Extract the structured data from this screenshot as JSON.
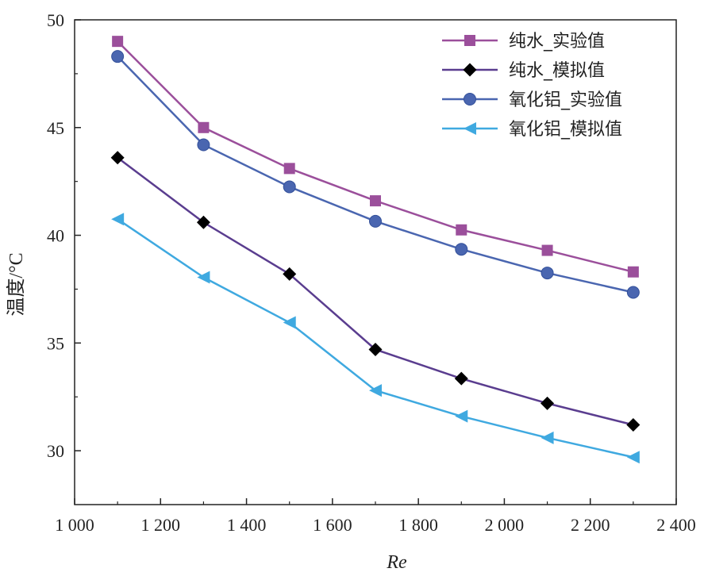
{
  "chart_data": {
    "type": "line",
    "title": "",
    "xlabel": "Re",
    "ylabel": "温度/°C",
    "xlim": [
      1000,
      2400
    ],
    "ylim": [
      27.5,
      50
    ],
    "x_ticks": [
      1000,
      1200,
      1400,
      1600,
      1800,
      2000,
      2200,
      2400
    ],
    "x_tick_labels": [
      "1 000",
      "1 200",
      "1 400",
      "1 600",
      "1 800",
      "2 000",
      "2 200",
      "2 400"
    ],
    "y_ticks": [
      30,
      35,
      40,
      45,
      50
    ],
    "y_tick_labels": [
      "30",
      "35",
      "40",
      "45",
      "50"
    ],
    "grid": false,
    "legend_position": "top-right",
    "x": [
      1100,
      1300,
      1500,
      1700,
      1900,
      2100,
      2300
    ],
    "series": [
      {
        "name": "纯水_实验值",
        "color": "#9b4f9b",
        "marker": "square",
        "values": [
          49.0,
          45.0,
          43.1,
          41.6,
          40.25,
          39.3,
          38.3
        ]
      },
      {
        "name": "纯水_模拟值",
        "color": "#5a3d8f",
        "marker": "diamond",
        "values": [
          43.6,
          40.6,
          38.2,
          34.7,
          33.35,
          32.2,
          31.2
        ]
      },
      {
        "name": "氧化铝_实验值",
        "color": "#4a66b0",
        "marker": "circle",
        "values": [
          48.3,
          44.2,
          42.25,
          40.65,
          39.35,
          38.25,
          37.35
        ]
      },
      {
        "name": "氧化铝_模拟值",
        "color": "#3fa9e0",
        "marker": "triangle-left",
        "values": [
          40.75,
          38.05,
          35.95,
          32.8,
          31.6,
          30.6,
          29.7
        ]
      }
    ]
  }
}
